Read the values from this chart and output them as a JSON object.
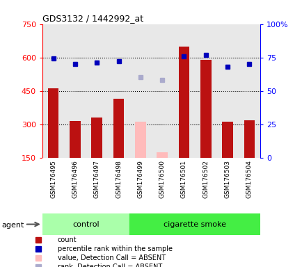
{
  "title": "GDS3132 / 1442992_at",
  "samples": [
    "GSM176495",
    "GSM176496",
    "GSM176497",
    "GSM176498",
    "GSM176499",
    "GSM176500",
    "GSM176501",
    "GSM176502",
    "GSM176503",
    "GSM176504"
  ],
  "groups": [
    "control",
    "control",
    "control",
    "control",
    "cigarette smoke",
    "cigarette smoke",
    "cigarette smoke",
    "cigarette smoke",
    "cigarette smoke",
    "cigarette smoke"
  ],
  "bar_values": [
    460,
    315,
    330,
    415,
    310,
    175,
    650,
    590,
    310,
    318
  ],
  "bar_absent": [
    false,
    false,
    false,
    false,
    true,
    true,
    false,
    false,
    false,
    false
  ],
  "rank_values": [
    74,
    70,
    71,
    72,
    60,
    58,
    76,
    77,
    68,
    70
  ],
  "rank_absent": [
    false,
    false,
    false,
    false,
    true,
    true,
    false,
    false,
    false,
    false
  ],
  "ylim_left": [
    150,
    750
  ],
  "ylim_right": [
    0,
    100
  ],
  "yticks_left": [
    150,
    300,
    450,
    600,
    750
  ],
  "yticks_right": [
    0,
    25,
    50,
    75,
    100
  ],
  "ytick_labels_left": [
    "150",
    "300",
    "450",
    "600",
    "750"
  ],
  "ytick_labels_right": [
    "0",
    "25",
    "50",
    "75",
    "100%"
  ],
  "hlines": [
    300,
    450,
    600
  ],
  "bar_color_present": "#bb1111",
  "bar_color_absent": "#ffbbbb",
  "rank_color_present": "#0000bb",
  "rank_color_absent": "#aaaacc",
  "control_color": "#aaffaa",
  "smoke_color": "#44ee44",
  "agent_label": "agent",
  "legend_items": [
    {
      "label": "count",
      "color": "#bb1111"
    },
    {
      "label": "percentile rank within the sample",
      "color": "#0000bb"
    },
    {
      "label": "value, Detection Call = ABSENT",
      "color": "#ffbbbb"
    },
    {
      "label": "rank, Detection Call = ABSENT",
      "color": "#aaaacc"
    }
  ],
  "plot_bg": "#e8e8e8",
  "bar_width": 0.5,
  "figsize": [
    4.35,
    3.84
  ],
  "dpi": 100
}
